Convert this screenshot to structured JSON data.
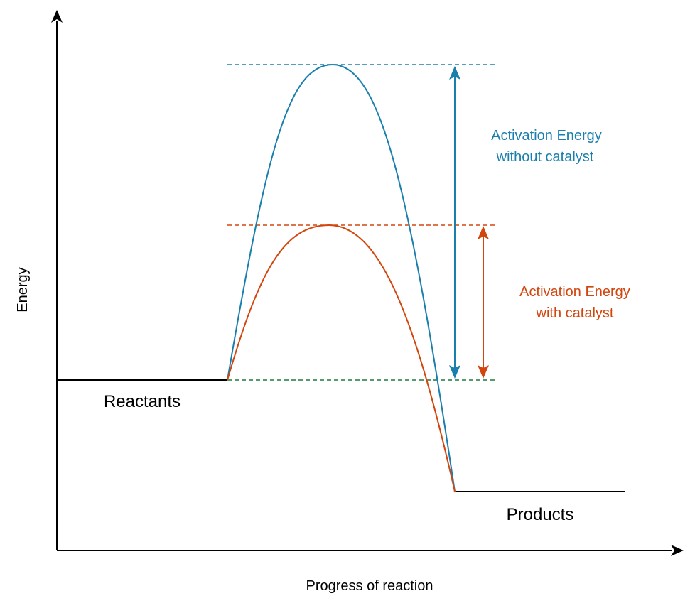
{
  "axes": {
    "y_label": "Energy",
    "x_label": "Progress of reaction"
  },
  "labels": {
    "reactants": "Reactants",
    "products": "Products",
    "without_catalyst_line1": "Activation Energy",
    "without_catalyst_line2": "without catalyst",
    "with_catalyst_line1": "Activation Energy",
    "with_catalyst_line2": "with catalyst"
  },
  "colors": {
    "without_catalyst": "#1a7fad",
    "with_catalyst": "#d2460e",
    "baseline_dashed": "#1e7a3e",
    "axis": "#000000"
  }
}
